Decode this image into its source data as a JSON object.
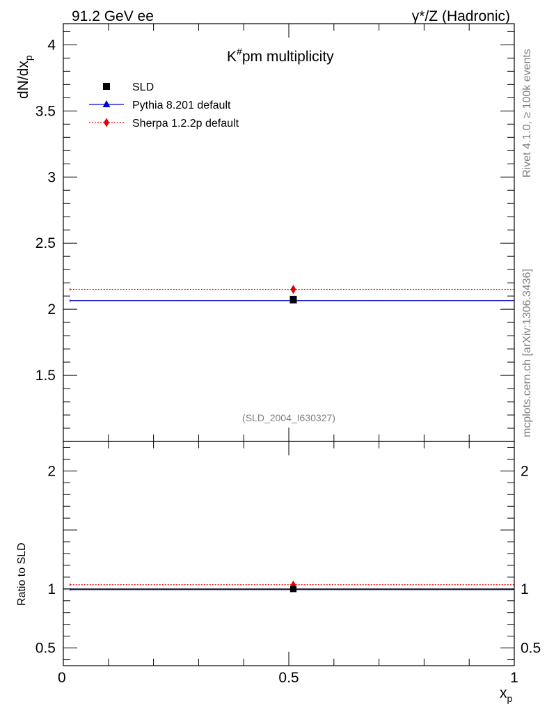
{
  "header": {
    "left": "91.2 GeV ee",
    "right": "γ*/Z (Hadronic)"
  },
  "side_labels": {
    "rivet": "Rivet 4.1.0, ≥ 100k events",
    "mcplots": "mcplots.cern.ch [arXiv:1306.3436]"
  },
  "chart_data": {
    "type": "scatter",
    "title": "K#pm  multiplicity",
    "title_main": "K",
    "title_sup": "#",
    "title_rest": "pm  multiplicity",
    "analysis_id": "(SLD_2004_I630327)",
    "xlabel": "x",
    "xlabel_sub": "p",
    "ylabel": "dN/dx",
    "ylabel_sub": "p",
    "ratio_ylabel": "Ratio to SLD",
    "xlim": [
      0,
      1
    ],
    "ylim": [
      1.0,
      4.16
    ],
    "ratio_ylim": [
      0.35,
      2.25
    ],
    "x_ticks": [
      {
        "value": 0,
        "label": "0"
      },
      {
        "value": 0.5,
        "label": "0.5"
      },
      {
        "value": 1,
        "label": "1"
      }
    ],
    "y_ticks": [
      {
        "value": 1.5,
        "label": "1.5"
      },
      {
        "value": 2,
        "label": "2"
      },
      {
        "value": 2.5,
        "label": "2.5"
      },
      {
        "value": 3,
        "label": "3"
      },
      {
        "value": 3.5,
        "label": "3.5"
      },
      {
        "value": 4,
        "label": "4"
      }
    ],
    "ratio_y_ticks": [
      {
        "value": 0.5,
        "label": "0.5"
      },
      {
        "value": 1,
        "label": "1"
      },
      {
        "value": 2,
        "label": "2"
      }
    ],
    "series": [
      {
        "name": "SLD",
        "color": "#000000",
        "marker": "square",
        "line": "none",
        "x": 0.51,
        "y": 2.075,
        "xmin": 0.51,
        "xmax": 0.51,
        "ratio": 1.0
      },
      {
        "name": "Pythia 8.201 default",
        "color": "#0000cc",
        "marker": "triangle",
        "line": "solid",
        "x": 0.51,
        "y": 2.065,
        "xmin": 0.015,
        "xmax": 1.0,
        "ratio": 0.995
      },
      {
        "name": "Sherpa 1.2.2p default",
        "color": "#e00000",
        "marker": "diamond",
        "line": "dotted",
        "x": 0.51,
        "y": 2.15,
        "xmin": 0.015,
        "xmax": 1.0,
        "ratio": 1.036
      }
    ],
    "legend_position": "top-left"
  }
}
